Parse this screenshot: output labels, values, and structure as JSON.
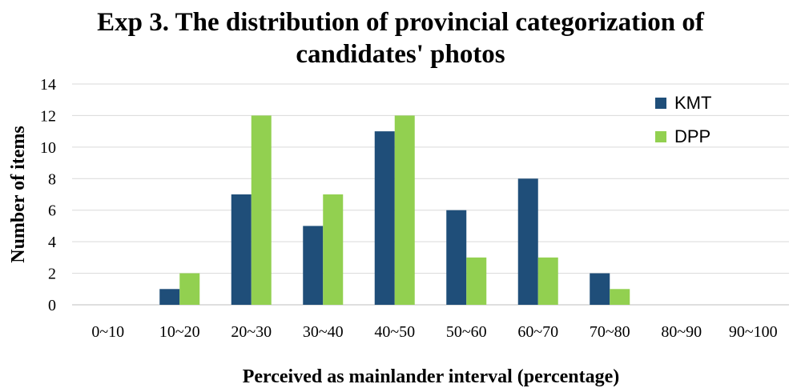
{
  "chart_data": {
    "type": "bar",
    "title_line1": "Exp 3. The distribution of provincial categorization of",
    "title_line2": "candidates' photos",
    "xlabel": "Perceived as mainlander interval (percentage)",
    "ylabel": "Number of items",
    "categories": [
      "0~10",
      "10~20",
      "20~30",
      "30~40",
      "40~50",
      "50~60",
      "60~70",
      "70~80",
      "80~90",
      "90~100"
    ],
    "series": [
      {
        "name": "KMT",
        "color": "#1f4e79",
        "values": [
          0,
          1,
          7,
          5,
          11,
          6,
          8,
          2,
          0,
          0
        ]
      },
      {
        "name": "DPP",
        "color": "#92d050",
        "values": [
          0,
          2,
          12,
          7,
          12,
          3,
          3,
          1,
          0,
          0
        ]
      }
    ],
    "ylim": [
      0,
      14
    ],
    "yticks": [
      0,
      2,
      4,
      6,
      8,
      10,
      12,
      14
    ],
    "grid": true,
    "legend_position": "top-right"
  }
}
